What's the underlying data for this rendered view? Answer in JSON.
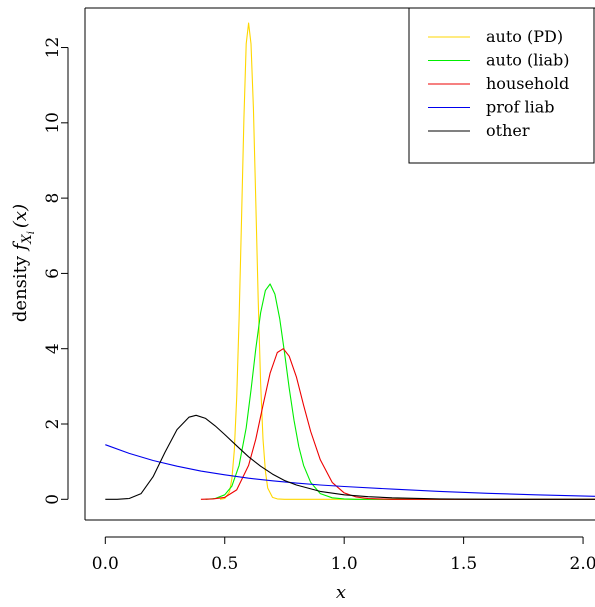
{
  "chart_data": {
    "type": "line",
    "title": "",
    "xlabel": "x",
    "ylabel_prefix": "density ",
    "ylabel_symbol": "f",
    "ylabel_sub": "X",
    "ylabel_subsub": "i",
    "ylabel_suffix": "(x)",
    "xlim": [
      -0.085,
      2.05
    ],
    "ylim": [
      -0.55,
      13.05
    ],
    "xticks": [
      "0.0",
      "0.5",
      "1.0",
      "1.5",
      "2.0"
    ],
    "yticks": [
      "0",
      "2",
      "4",
      "6",
      "8",
      "10",
      "12"
    ],
    "legend_position": "top-right",
    "series": [
      {
        "name": "auto (PD)",
        "color": "#FFD700",
        "x": [
          0.48,
          0.5,
          0.52,
          0.53,
          0.54,
          0.55,
          0.56,
          0.57,
          0.58,
          0.59,
          0.6,
          0.61,
          0.62,
          0.63,
          0.64,
          0.65,
          0.66,
          0.67,
          0.68,
          0.7,
          0.72,
          0.75,
          0.8,
          2.05
        ],
        "y": [
          0.0,
          0.02,
          0.2,
          0.55,
          1.3,
          2.7,
          4.8,
          7.4,
          10.1,
          12.1,
          12.65,
          12.1,
          10.4,
          7.9,
          5.3,
          3.1,
          1.6,
          0.75,
          0.3,
          0.05,
          0.01,
          0.0,
          0.0,
          0.0
        ]
      },
      {
        "name": "auto (liab)",
        "color": "#00EE00",
        "x": [
          0.42,
          0.46,
          0.5,
          0.53,
          0.56,
          0.59,
          0.61,
          0.63,
          0.65,
          0.67,
          0.69,
          0.71,
          0.73,
          0.75,
          0.77,
          0.79,
          0.81,
          0.83,
          0.86,
          0.9,
          0.95,
          1.0,
          1.05,
          2.05
        ],
        "y": [
          0.0,
          0.02,
          0.12,
          0.35,
          0.9,
          1.9,
          2.9,
          4.0,
          4.95,
          5.55,
          5.72,
          5.45,
          4.8,
          3.9,
          2.95,
          2.1,
          1.4,
          0.9,
          0.45,
          0.15,
          0.04,
          0.01,
          0.0,
          0.0
        ]
      },
      {
        "name": "household",
        "color": "#EE0000",
        "x": [
          0.4,
          0.45,
          0.5,
          0.55,
          0.6,
          0.63,
          0.66,
          0.69,
          0.72,
          0.745,
          0.77,
          0.8,
          0.83,
          0.86,
          0.9,
          0.95,
          1.0,
          1.05,
          1.1,
          1.15,
          1.2,
          1.3,
          2.05
        ],
        "y": [
          0.0,
          0.01,
          0.05,
          0.25,
          0.9,
          1.6,
          2.5,
          3.35,
          3.9,
          4.0,
          3.8,
          3.25,
          2.5,
          1.8,
          1.05,
          0.45,
          0.17,
          0.06,
          0.02,
          0.01,
          0.0,
          0.0,
          0.0
        ]
      },
      {
        "name": "prof liab",
        "color": "#0000EE",
        "x": [
          0.0,
          0.1,
          0.2,
          0.3,
          0.4,
          0.5,
          0.6,
          0.7,
          0.8,
          0.9,
          1.0,
          1.2,
          1.4,
          1.6,
          1.8,
          2.05
        ],
        "y": [
          1.45,
          1.22,
          1.03,
          0.88,
          0.75,
          0.65,
          0.56,
          0.49,
          0.43,
          0.38,
          0.34,
          0.27,
          0.21,
          0.16,
          0.12,
          0.08
        ]
      },
      {
        "name": "other",
        "color": "#000000",
        "x": [
          0.0,
          0.05,
          0.1,
          0.15,
          0.2,
          0.25,
          0.3,
          0.35,
          0.38,
          0.42,
          0.46,
          0.5,
          0.55,
          0.6,
          0.65,
          0.7,
          0.75,
          0.8,
          0.9,
          1.0,
          1.1,
          1.2,
          1.4,
          1.6,
          1.8,
          2.05
        ],
        "y": [
          0.0,
          0.0,
          0.02,
          0.15,
          0.6,
          1.25,
          1.85,
          2.18,
          2.23,
          2.15,
          1.95,
          1.72,
          1.42,
          1.13,
          0.88,
          0.67,
          0.5,
          0.38,
          0.21,
          0.12,
          0.07,
          0.04,
          0.01,
          0.0,
          0.0,
          0.0
        ]
      }
    ]
  }
}
